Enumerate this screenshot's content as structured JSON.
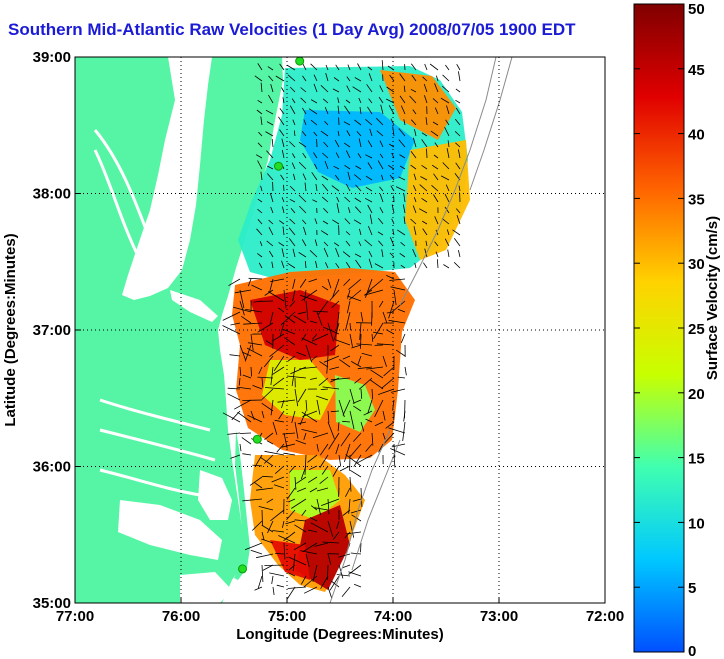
{
  "title": "Southern Mid-Atlantic Raw Velocities (1 Day Avg) 2008/07/05 1900 EDT",
  "axes": {
    "xlabel": "Longitude (Degrees:Minutes)",
    "ylabel": "Latitude (Degrees:Minutes)",
    "xticks": [
      "77:00",
      "76:00",
      "75:00",
      "74:00",
      "73:00",
      "72:00"
    ],
    "yticks": [
      "39:00",
      "38:00",
      "37:00",
      "36:00",
      "35:00"
    ],
    "xlim": [
      -77,
      -72
    ],
    "ylim": [
      35,
      39
    ]
  },
  "colorbar": {
    "label": "Surface Velocity (cm/s)",
    "min": 0,
    "max": 50,
    "ticks": [
      "0",
      "5",
      "10",
      "15",
      "20",
      "25",
      "30",
      "35",
      "40",
      "45",
      "50"
    ],
    "colors": [
      "#0050ff",
      "#00c8ff",
      "#40ffb0",
      "#c8ff00",
      "#ffd200",
      "#ff6400",
      "#e00000",
      "#800000"
    ]
  },
  "map": {
    "land_color": "#55f5a5",
    "water_color": "#ffffff",
    "station_color": "#22dd22",
    "vector_color": "#000000"
  },
  "chart_data": {
    "type": "heatmap",
    "title": "Southern Mid-Atlantic Raw Velocities (1 Day Avg) 2008/07/05 1900 EDT",
    "xlabel": "Longitude (Degrees:Minutes)",
    "ylabel": "Latitude (Degrees:Minutes)",
    "colorbar_label": "Surface Velocity (cm/s)",
    "value_range": [
      0,
      50
    ],
    "grid": true
  }
}
